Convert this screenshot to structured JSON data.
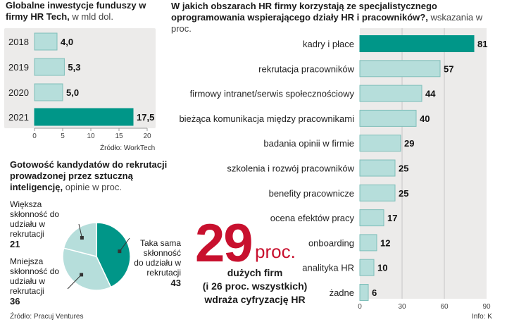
{
  "colors": {
    "accent": "#009688",
    "bar": "#b6dedb",
    "bar_stroke": "#7fbfba",
    "panel": "#ecebea",
    "grid": "#c6c6c6",
    "highlight": "#c8102e"
  },
  "chart_data": [
    {
      "id": "investment",
      "type": "bar",
      "orientation": "horizontal",
      "title": "Globalne inwestycje funduszy w firmy HR Tech,",
      "unit": "w mld dol.",
      "categories": [
        "2018",
        "2019",
        "2020",
        "2021"
      ],
      "values": [
        4.0,
        5.3,
        5.0,
        17.5
      ],
      "value_labels": [
        "4,0",
        "5,3",
        "5,0",
        "17,5"
      ],
      "highlight_index": 3,
      "xlim": [
        0,
        20
      ],
      "ticks": [
        0,
        5,
        10,
        15,
        20
      ],
      "tick_labels": [
        "0",
        "5",
        "10",
        "15",
        "20"
      ],
      "source": "Źródło: WorkTech"
    },
    {
      "id": "areas",
      "type": "bar",
      "orientation": "horizontal",
      "title": "W jakich obszarach HR firmy korzystają ze specjalistycznego oprogramowania wspierającego działy HR i pracowników?,",
      "unit": "wskazania w proc.",
      "categories": [
        "kadry i płace",
        "rekrutacja pracowników",
        "firmowy intranet/serwis społecznościowy",
        "bieżąca komunikacja między pracownikami",
        "badania opinii w firmie",
        "szkolenia i rozwój pracowników",
        "benefity pracownicze",
        "ocena efektów pracy",
        "onboarding",
        "analityka HR",
        "żadne"
      ],
      "values": [
        81,
        57,
        44,
        40,
        29,
        25,
        25,
        17,
        12,
        10,
        6
      ],
      "highlight_index": 0,
      "xlim": [
        0,
        90
      ],
      "ticks": [
        0,
        30,
        60,
        90
      ],
      "tick_labels": [
        "0",
        "30",
        "60",
        "90"
      ],
      "source": "Info: K"
    },
    {
      "id": "ai_recruitment",
      "type": "pie",
      "title": "Gotowość kandydatów do rekrutacji prowadzonej przez sztuczną inteligencję,",
      "unit": "opinie w proc.",
      "labels": [
        "Taka sama skłonność do udziału w rekrutacji",
        "Mniejsza skłonność do udziału w rekrutacji",
        "Większa skłonność do udziału w rekrutacji"
      ],
      "values": [
        43,
        36,
        21
      ],
      "value_labels": [
        "43",
        "36",
        "21"
      ],
      "source": "Źródło: Pracuj Ventures"
    }
  ],
  "highlight": {
    "number": "29",
    "unit": "proc.",
    "caption": [
      "dużych firm",
      "(i 26 proc. wszystkich)",
      "wdraża cyfryzację HR"
    ]
  }
}
